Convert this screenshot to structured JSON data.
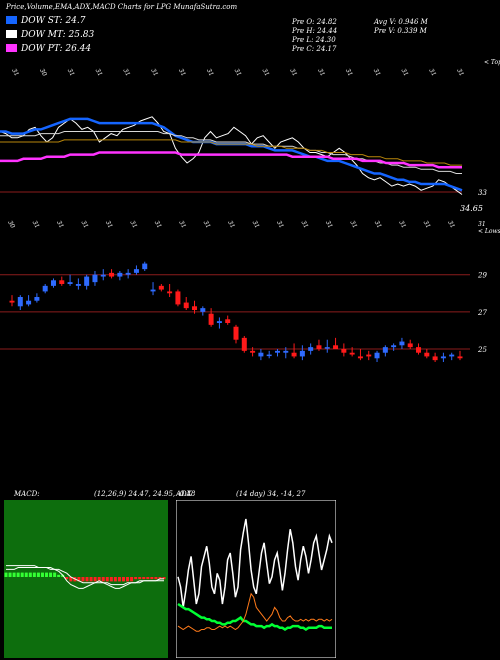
{
  "header": {
    "title": "Price,Volume,EMA,ADX,MACD Charts for LPG MunafaSutra.com"
  },
  "legend": [
    {
      "label": "DOW ST: 24.7",
      "color": "#1565ff"
    },
    {
      "label": "DOW MT: 25.83",
      "color": "#ffffff"
    },
    {
      "label": "DOW PT: 26.44",
      "color": "#ff33ff"
    }
  ],
  "stats": {
    "pre_o": "Pre  O: 24.82",
    "pre_h": "Pre  H: 24.44",
    "pre_l": "Pre  L: 24.30",
    "pre_c": "Pre  C: 24.17",
    "avg_v": "Avg V: 0.946  M",
    "pre_v": "Pre  V: 0.339 M"
  },
  "colors": {
    "up": "#2f6bff",
    "down": "#ff1a1a",
    "hline": "#8b1c1c",
    "macd_bg": "#0d6e0d",
    "adx_bg": "#000000"
  },
  "chart_data": [
    {
      "type": "line",
      "name": "ema-panel",
      "date_labels": [
        "31",
        "30",
        "31",
        "31",
        "31",
        "31",
        "31",
        "31",
        "31",
        "31",
        "31",
        "31",
        "31",
        "31",
        "31",
        "31",
        "31"
      ],
      "top_right_label": "< Tops",
      "price_label": "33",
      "last_price_label": "34.65",
      "x": [
        0,
        1,
        2,
        3,
        4,
        5,
        6,
        7,
        8,
        9,
        10,
        11,
        12,
        13,
        14,
        15,
        16,
        17,
        18,
        19,
        20,
        21,
        22,
        23,
        24,
        25,
        26,
        27,
        28,
        29,
        30,
        31,
        32,
        33,
        34,
        35,
        36,
        37,
        38,
        39,
        40,
        41,
        42,
        43,
        44,
        45,
        46,
        47,
        48,
        49,
        50,
        51,
        52,
        53,
        54,
        55,
        56,
        57,
        58,
        59,
        60,
        61,
        62,
        63,
        64,
        65,
        66,
        67,
        68,
        69,
        70,
        71,
        72,
        73,
        74,
        75,
        76,
        77,
        78,
        79
      ],
      "series": [
        {
          "color": "#ffffff",
          "values": [
            60,
            59,
            57,
            57,
            58,
            61,
            62,
            58,
            55,
            57,
            62,
            64,
            66,
            64,
            61,
            62,
            60,
            55,
            57,
            59,
            58,
            61,
            62,
            63,
            65,
            66,
            67,
            64,
            60,
            59,
            52,
            48,
            45,
            47,
            50,
            57,
            60,
            57,
            58,
            59,
            62,
            60,
            58,
            54,
            57,
            58,
            55,
            52,
            55,
            56,
            57,
            55,
            52,
            50,
            50,
            49,
            48,
            50,
            52,
            50,
            47,
            44,
            40,
            38,
            37,
            38,
            36,
            34,
            35,
            34,
            35,
            34,
            32,
            33,
            34,
            37,
            36,
            34,
            32,
            30
          ]
        },
        {
          "color": "#1565ff",
          "values": [
            60,
            60,
            59,
            59,
            59,
            60,
            61,
            61,
            62,
            63,
            64,
            65,
            66,
            66,
            66,
            66,
            65,
            64,
            64,
            64,
            64,
            64,
            64,
            64,
            64,
            64,
            64,
            63,
            62,
            60,
            58,
            57,
            56,
            55,
            55,
            55,
            55,
            54,
            54,
            54,
            54,
            54,
            54,
            53,
            53,
            53,
            52,
            51,
            51,
            51,
            51,
            50,
            49,
            48,
            48,
            47,
            46,
            46,
            46,
            45,
            44,
            43,
            42,
            41,
            40,
            40,
            39,
            38,
            37,
            37,
            36,
            36,
            35,
            35,
            35,
            35,
            35,
            34,
            33,
            32
          ]
        },
        {
          "color": "#d8d8d8",
          "values": [
            58,
            58,
            58,
            58,
            58,
            58,
            58,
            59,
            59,
            59,
            59,
            60,
            60,
            60,
            60,
            60,
            60,
            60,
            60,
            60,
            60,
            60,
            60,
            60,
            60,
            60,
            60,
            60,
            59,
            59,
            58,
            58,
            57,
            57,
            56,
            56,
            56,
            55,
            55,
            55,
            55,
            55,
            55,
            54,
            54,
            54,
            53,
            53,
            53,
            53,
            53,
            52,
            52,
            51,
            51,
            50,
            50,
            49,
            49,
            49,
            48,
            47,
            47,
            46,
            46,
            45,
            45,
            44,
            44,
            43,
            43,
            43,
            42,
            42,
            42,
            41,
            41,
            41,
            40,
            40
          ]
        },
        {
          "color": "#b8860b",
          "values": [
            55,
            55,
            55,
            55,
            55,
            55,
            55,
            55,
            55,
            55,
            55,
            56,
            56,
            56,
            56,
            56,
            56,
            56,
            56,
            56,
            56,
            56,
            56,
            56,
            56,
            56,
            56,
            56,
            56,
            56,
            56,
            55,
            55,
            55,
            55,
            55,
            55,
            54,
            54,
            54,
            54,
            54,
            54,
            54,
            53,
            53,
            53,
            53,
            53,
            52,
            52,
            52,
            52,
            51,
            51,
            51,
            50,
            50,
            50,
            50,
            49,
            49,
            49,
            48,
            48,
            48,
            47,
            47,
            47,
            46,
            46,
            46,
            46,
            45,
            45,
            45,
            45,
            44,
            44,
            44
          ]
        },
        {
          "color": "#ff33ff",
          "values": [
            46,
            46,
            46,
            46,
            47,
            47,
            47,
            47,
            48,
            48,
            48,
            48,
            49,
            49,
            49,
            49,
            49,
            50,
            50,
            50,
            50,
            50,
            50,
            50,
            50,
            50,
            50,
            50,
            50,
            50,
            50,
            49,
            49,
            49,
            49,
            49,
            49,
            49,
            49,
            49,
            49,
            49,
            49,
            49,
            49,
            49,
            49,
            49,
            49,
            49,
            48,
            48,
            48,
            48,
            48,
            48,
            48,
            47,
            47,
            47,
            47,
            47,
            46,
            46,
            46,
            46,
            45,
            45,
            45,
            45,
            44,
            44,
            44,
            44,
            44,
            43,
            43,
            43,
            43,
            43
          ]
        }
      ]
    },
    {
      "type": "candlestick",
      "name": "price-panel",
      "date_labels": [
        "30",
        "31",
        "31",
        "31",
        "31",
        "31",
        "31",
        "31",
        "31",
        "31",
        "31",
        "31",
        "31",
        "31",
        "31",
        "31",
        "31",
        "31",
        "31"
      ],
      "right_label": "< Lows",
      "levels": [
        {
          "value": 29,
          "label": "29"
        },
        {
          "value": 27,
          "label": "27"
        },
        {
          "value": 25,
          "label": "25"
        }
      ],
      "top_label": "31",
      "ylim": [
        23.6,
        31.3
      ],
      "candles": [
        [
          27.6,
          27.9,
          27.3,
          27.5
        ],
        [
          27.3,
          27.9,
          27.1,
          27.8
        ],
        [
          27.4,
          27.9,
          27.3,
          27.6
        ],
        [
          27.6,
          28.0,
          27.5,
          27.8
        ],
        [
          28.1,
          28.5,
          28.0,
          28.4
        ],
        [
          28.4,
          28.8,
          28.3,
          28.7
        ],
        [
          28.7,
          28.9,
          28.4,
          28.5
        ],
        [
          28.5,
          29.0,
          28.4,
          28.6
        ],
        [
          28.4,
          28.8,
          28.2,
          28.5
        ],
        [
          28.4,
          29.0,
          28.2,
          28.9
        ],
        [
          28.6,
          29.2,
          28.4,
          29.0
        ],
        [
          28.9,
          29.3,
          28.7,
          29.0
        ],
        [
          29.1,
          29.3,
          28.8,
          28.9
        ],
        [
          28.9,
          29.2,
          28.7,
          29.1
        ],
        [
          29.0,
          29.3,
          28.8,
          29.1
        ],
        [
          29.1,
          29.5,
          29.0,
          29.3
        ],
        [
          29.3,
          29.7,
          29.2,
          29.6
        ],
        [
          28.1,
          28.6,
          27.9,
          28.2
        ],
        [
          28.4,
          28.5,
          28.1,
          28.2
        ],
        [
          28.1,
          28.5,
          27.8,
          28.0
        ],
        [
          28.1,
          28.2,
          27.3,
          27.4
        ],
        [
          27.5,
          27.8,
          27.1,
          27.2
        ],
        [
          27.3,
          27.6,
          26.9,
          27.1
        ],
        [
          27.0,
          27.3,
          26.8,
          27.2
        ],
        [
          26.9,
          27.2,
          26.2,
          26.3
        ],
        [
          26.4,
          26.7,
          26.1,
          26.5
        ],
        [
          26.6,
          26.8,
          26.3,
          26.4
        ],
        [
          26.2,
          26.3,
          25.3,
          25.5
        ],
        [
          25.6,
          25.7,
          24.8,
          24.9
        ],
        [
          24.9,
          25.1,
          24.6,
          24.8
        ],
        [
          24.6,
          25.0,
          24.4,
          24.8
        ],
        [
          24.7,
          24.9,
          24.5,
          24.7
        ],
        [
          24.8,
          25.0,
          24.6,
          24.9
        ],
        [
          24.8,
          25.1,
          24.5,
          24.9
        ],
        [
          24.8,
          25.3,
          24.5,
          24.6
        ],
        [
          24.6,
          25.2,
          24.4,
          24.9
        ],
        [
          24.9,
          25.3,
          24.7,
          25.1
        ],
        [
          25.2,
          25.5,
          24.9,
          25.0
        ],
        [
          25.1,
          25.5,
          24.8,
          25.1
        ],
        [
          25.2,
          25.6,
          25.0,
          25.0
        ],
        [
          25.0,
          25.3,
          24.6,
          24.8
        ],
        [
          24.8,
          25.1,
          24.6,
          24.7
        ],
        [
          24.6,
          25.0,
          24.4,
          24.5
        ],
        [
          24.7,
          24.9,
          24.4,
          24.6
        ],
        [
          24.5,
          24.9,
          24.3,
          24.8
        ],
        [
          24.8,
          25.2,
          24.6,
          25.1
        ],
        [
          25.1,
          25.3,
          24.9,
          25.2
        ],
        [
          25.2,
          25.6,
          25.0,
          25.4
        ],
        [
          25.3,
          25.5,
          25.0,
          25.1
        ],
        [
          25.1,
          25.3,
          24.7,
          24.8
        ],
        [
          24.8,
          25.0,
          24.5,
          24.6
        ],
        [
          24.6,
          24.8,
          24.3,
          24.4
        ],
        [
          24.5,
          24.8,
          24.3,
          24.6
        ],
        [
          24.6,
          24.8,
          24.4,
          24.7
        ],
        [
          24.6,
          24.9,
          24.4,
          24.5
        ]
      ]
    },
    {
      "type": "line",
      "name": "macd-panel",
      "title": "MACD:",
      "params": "(12,26,9) 24.47, 24.95, -0.48",
      "series": [
        {
          "color": "#ffffff",
          "values": [
            6,
            6,
            6,
            6,
            6,
            6,
            6,
            6,
            5,
            5,
            5,
            4,
            4,
            3,
            1,
            -2,
            -4,
            -5,
            -6,
            -6,
            -5,
            -4,
            -3,
            -2,
            -3,
            -4,
            -5,
            -6,
            -6,
            -5,
            -4,
            -3,
            -3,
            -2,
            -2,
            -2,
            -2,
            -2,
            -1,
            -1
          ]
        },
        {
          "color": "#ffffff",
          "values": [
            4,
            4,
            4,
            5,
            5,
            5,
            5,
            5,
            5,
            5,
            5,
            5,
            4,
            4,
            3,
            2,
            0,
            -1,
            -2,
            -3,
            -3,
            -3,
            -3,
            -3,
            -3,
            -3,
            -4,
            -4,
            -4,
            -4,
            -3,
            -3,
            -3,
            -3,
            -2,
            -2,
            -2,
            -2,
            -2,
            -2
          ]
        }
      ],
      "histogram": [
        2,
        2,
        2,
        2,
        2,
        2,
        2,
        2,
        2,
        2,
        2,
        2,
        2,
        1,
        1,
        -1,
        -2,
        -2,
        -2,
        -2,
        -2,
        -2,
        -2,
        -2,
        -2,
        -2,
        -2,
        -2,
        -2,
        -2,
        -2,
        -2,
        -1,
        -1,
        -1,
        -1,
        -1,
        -1,
        -1,
        -1
      ]
    },
    {
      "type": "line",
      "name": "adx-panel",
      "title": "ADX",
      "params": "(14 day) 34, -14, 27",
      "series": [
        {
          "color": "#ffffff",
          "values": [
            46,
            40,
            28,
            38,
            50,
            58,
            44,
            30,
            36,
            52,
            58,
            64,
            54,
            40,
            36,
            48,
            44,
            30,
            40,
            56,
            60,
            48,
            34,
            40,
            62,
            72,
            80,
            66,
            50,
            40,
            36,
            48,
            60,
            66,
            54,
            42,
            46,
            56,
            60,
            50,
            38,
            48,
            62,
            74,
            66,
            52,
            44,
            56,
            64,
            58,
            48,
            56,
            66,
            70,
            60,
            50,
            56,
            62,
            70,
            66
          ]
        },
        {
          "color": "#00ff33",
          "values": [
            30,
            29,
            28,
            27,
            27,
            26,
            25,
            24,
            23,
            22,
            22,
            21,
            21,
            20,
            20,
            19,
            19,
            18,
            18,
            19,
            19,
            20,
            20,
            21,
            22,
            20,
            20,
            19,
            18,
            18,
            17,
            17,
            17,
            16,
            17,
            17,
            18,
            17,
            17,
            16,
            16,
            15,
            16,
            16,
            17,
            17,
            17,
            16,
            16,
            15,
            16,
            16,
            16,
            16,
            17,
            17,
            16,
            16,
            16,
            16
          ]
        },
        {
          "color": "#ff7a1a",
          "values": [
            17,
            16,
            15,
            16,
            17,
            16,
            15,
            14,
            14,
            15,
            15,
            16,
            16,
            15,
            15,
            16,
            17,
            16,
            17,
            16,
            17,
            16,
            15,
            16,
            18,
            20,
            24,
            30,
            36,
            34,
            28,
            26,
            24,
            22,
            20,
            22,
            24,
            28,
            26,
            22,
            20,
            20,
            22,
            23,
            21,
            20,
            20,
            21,
            20,
            21,
            20,
            21,
            21,
            20,
            21,
            21,
            20,
            21,
            20,
            21
          ]
        }
      ]
    }
  ]
}
